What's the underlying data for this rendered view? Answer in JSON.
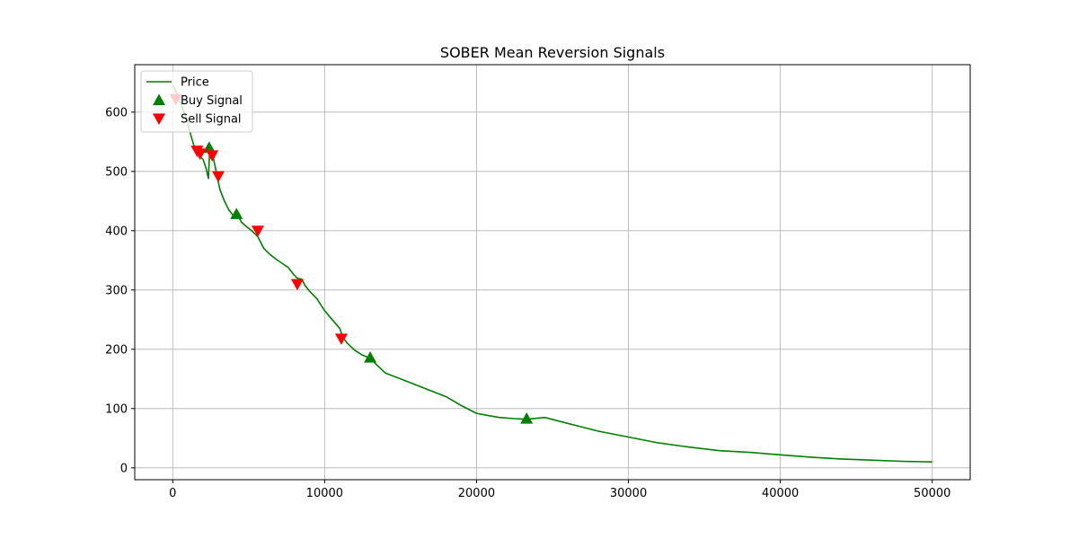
{
  "chart_data": {
    "type": "line",
    "title": "SOBER Mean Reversion Signals",
    "xlabel": "",
    "ylabel": "",
    "xlim": [
      -2500,
      52500
    ],
    "ylim": [
      -20,
      680
    ],
    "xticks": [
      0,
      10000,
      20000,
      30000,
      40000,
      50000
    ],
    "yticks": [
      0,
      100,
      200,
      300,
      400,
      500,
      600
    ],
    "grid": true,
    "legend_position": "top-left",
    "colors": {
      "price": "#008000",
      "buy": "#008000",
      "sell": "#ff0000"
    },
    "legend": [
      {
        "label": "Price",
        "marker": "line",
        "color": "#008000"
      },
      {
        "label": "Buy Signal",
        "marker": "triangle-up",
        "color": "#008000"
      },
      {
        "label": "Sell Signal",
        "marker": "triangle-down",
        "color": "#ff0000"
      }
    ],
    "series": [
      {
        "name": "Price",
        "kind": "line",
        "x": [
          0,
          300,
          600,
          900,
          1200,
          1500,
          1800,
          2000,
          2200,
          2350,
          2450,
          2550,
          2700,
          2900,
          3100,
          3400,
          3700,
          4000,
          4200,
          4500,
          4800,
          5200,
          5600,
          6000,
          6400,
          6800,
          7200,
          7600,
          8000,
          8200,
          8500,
          8700,
          9000,
          9500,
          10000,
          10500,
          11000,
          11200,
          11500,
          12000,
          12500,
          13000,
          13500,
          14000,
          15000,
          16000,
          17000,
          18000,
          19000,
          20000,
          20800,
          21500,
          22500,
          23300,
          24500,
          26000,
          28000,
          30000,
          32000,
          34000,
          36000,
          38000,
          40000,
          42000,
          44000,
          46000,
          48000,
          50000
        ],
        "y": [
          645,
          630,
          610,
          590,
          560,
          535,
          525,
          520,
          505,
          488,
          545,
          535,
          520,
          495,
          470,
          450,
          435,
          425,
          432,
          415,
          408,
          400,
          390,
          370,
          360,
          352,
          345,
          338,
          325,
          320,
          318,
          308,
          298,
          285,
          265,
          250,
          235,
          220,
          210,
          198,
          190,
          185,
          172,
          160,
          150,
          140,
          130,
          120,
          105,
          92,
          88,
          85,
          83,
          82,
          85,
          75,
          62,
          52,
          42,
          35,
          29,
          26,
          22,
          18,
          15,
          13,
          11,
          10
        ]
      },
      {
        "name": "Buy Signal",
        "kind": "marker",
        "x": [
          2400,
          4200,
          13000,
          23300
        ],
        "y": [
          540,
          428,
          186,
          83
        ]
      },
      {
        "name": "Sell Signal",
        "kind": "marker",
        "x": [
          200,
          1600,
          1800,
          2600,
          3000,
          5600,
          8200,
          11100
        ],
        "y": [
          622,
          535,
          530,
          527,
          492,
          400,
          310,
          218
        ]
      }
    ]
  }
}
